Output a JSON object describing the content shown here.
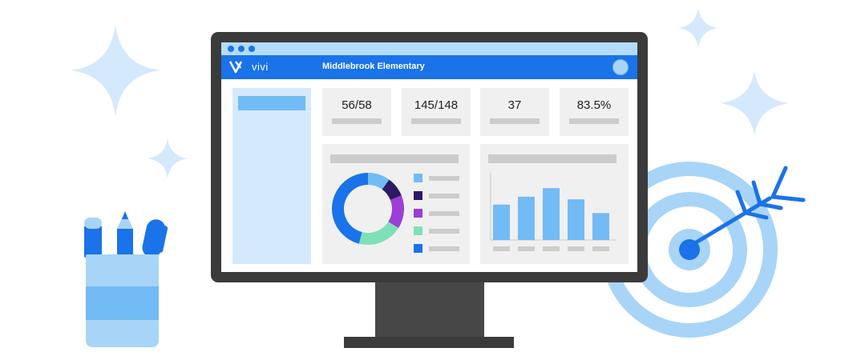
{
  "app": {
    "brand": "vivi",
    "school_name": "Middlebrook Elementary"
  },
  "stats": [
    {
      "value": "56/58"
    },
    {
      "value": "145/148"
    },
    {
      "value": "37"
    },
    {
      "value": "83.5%"
    }
  ],
  "donut_chart": {
    "type": "pie",
    "slices": [
      {
        "value": 10,
        "color": "#72bbf5"
      },
      {
        "value": 9,
        "color": "#2c1a66"
      },
      {
        "value": 15,
        "color": "#9b3fd6"
      },
      {
        "value": 20,
        "color": "#7ee0b8"
      },
      {
        "value": 46,
        "color": "#1a73e8"
      }
    ]
  },
  "chart_data": {
    "type": "bar",
    "categories": [
      "",
      "",
      "",
      "",
      ""
    ],
    "values": [
      54,
      66,
      79,
      62,
      41
    ],
    "ylim": [
      0,
      100
    ],
    "color": "#72bbf5"
  },
  "colors": {
    "primary": "#1a73e8",
    "light": "#a8d4f7",
    "accent": "#72bbf5"
  }
}
